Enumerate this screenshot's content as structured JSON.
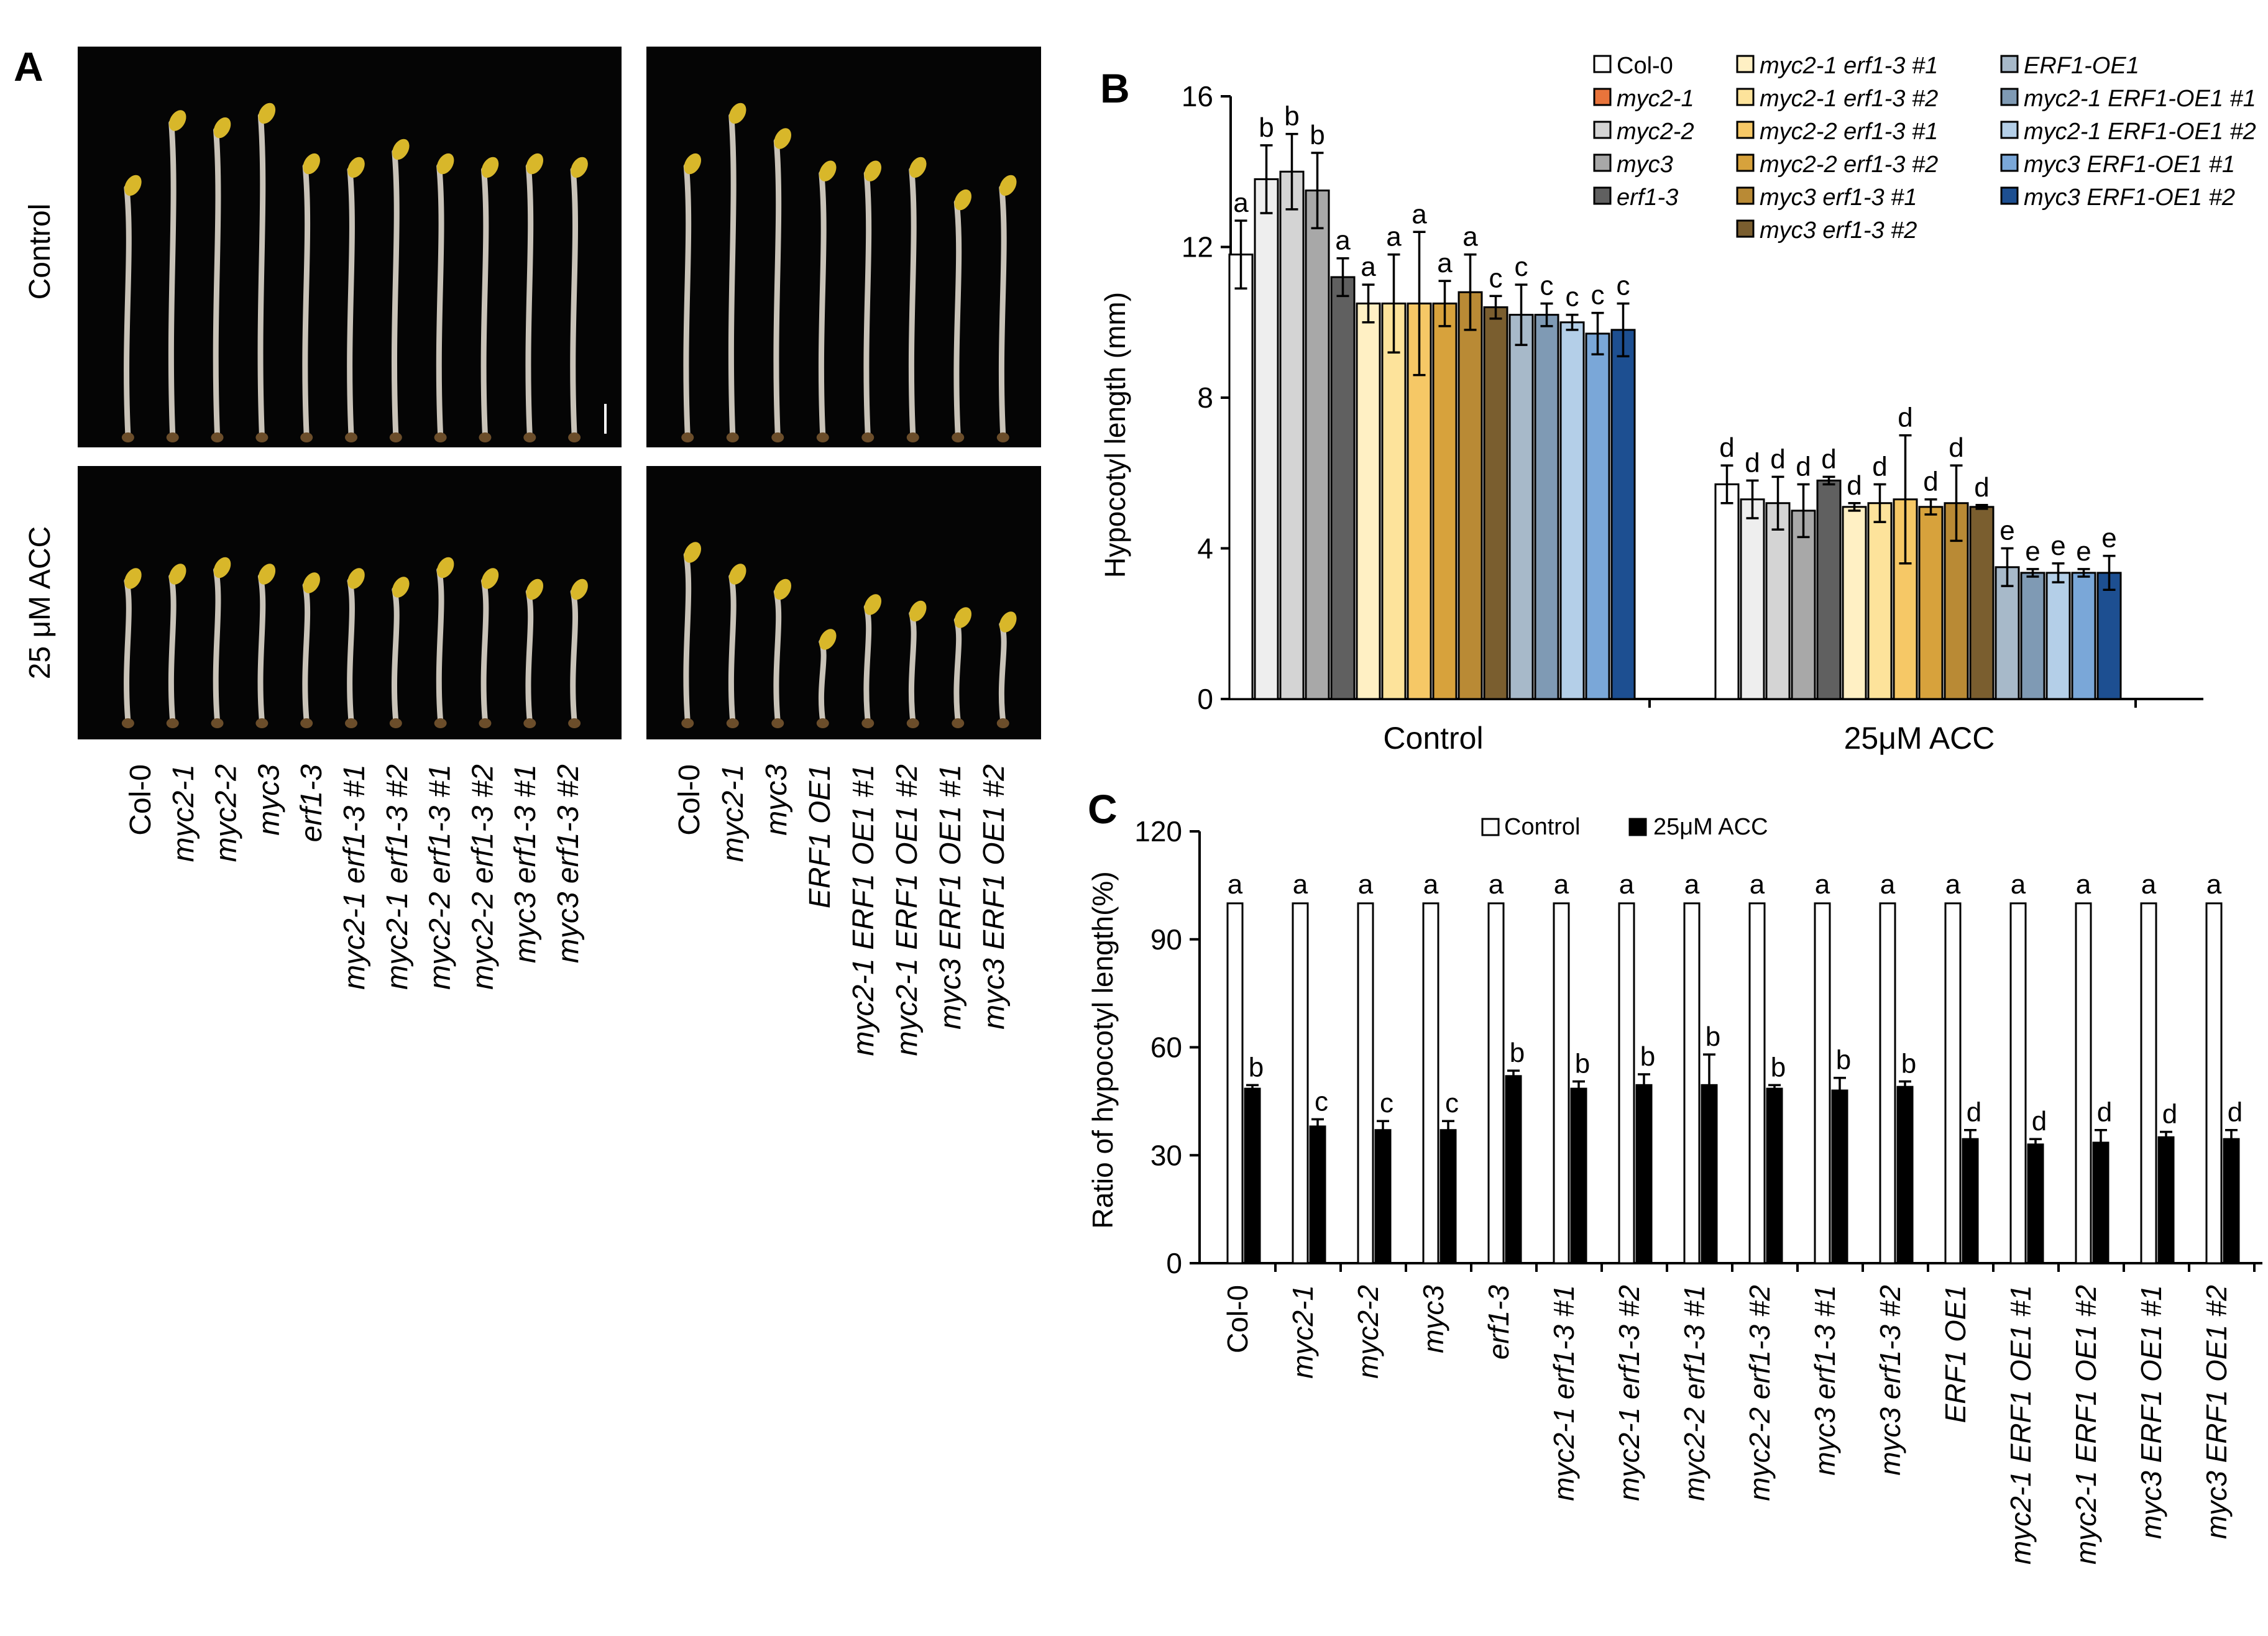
{
  "figure": {
    "panel_letters": [
      "A",
      "B",
      "C"
    ]
  },
  "panel_a": {
    "row_labels": [
      "Control",
      "25 μM ACC"
    ],
    "left_genotypes": [
      "Col-0",
      "myc2-1",
      "myc2-2",
      "myc3",
      "erf1-3",
      "myc2-1 erf1-3 #1",
      "myc2-1 erf1-3 #2",
      "myc2-2 erf1-3 #1",
      "myc2-2 erf1-3 #2",
      "myc3 erf1-3 #1",
      "myc3 erf1-3 #2"
    ],
    "right_genotypes": [
      "Col-0",
      "myc2-1",
      "myc3",
      "ERF1 OE1",
      "myc2-1 ERF1 OE1 #1",
      "myc2-1 ERF1 OE1 #2",
      "myc3 ERF1 OE1 #1",
      "myc3 ERF1 OE1 #2"
    ],
    "colors": {
      "background": "#050505",
      "hypocotyl": "#c9c3b8",
      "cotyledon": "#d8b72a"
    },
    "seedlings": {
      "top_left": [
        0.72,
        0.9,
        0.88,
        0.92,
        0.78,
        0.77,
        0.82,
        0.78,
        0.77,
        0.78,
        0.77
      ],
      "top_right": [
        0.78,
        0.92,
        0.85,
        0.76,
        0.76,
        0.77,
        0.68,
        0.72
      ],
      "bottom_left": [
        0.7,
        0.72,
        0.75,
        0.72,
        0.68,
        0.7,
        0.66,
        0.75,
        0.7,
        0.65,
        0.65
      ],
      "bottom_right": [
        0.82,
        0.72,
        0.65,
        0.42,
        0.58,
        0.55,
        0.52,
        0.5
      ]
    }
  },
  "chart_data": [
    {
      "panel": "B",
      "type": "bar",
      "title": "",
      "xlabel": "",
      "ylabel": "Hypocotyl length (mm)",
      "ylim": [
        0,
        16
      ],
      "yticks": [
        0,
        4,
        8,
        12,
        16
      ],
      "groups": [
        "Control",
        "25μM ACC"
      ],
      "legend": {
        "position": "top-right"
      },
      "series": [
        {
          "name": "Col-0",
          "color": "#ffffff",
          "values": [
            11.8,
            5.7
          ],
          "errors": [
            0.9,
            0.5
          ],
          "letters": [
            "a",
            "d"
          ]
        },
        {
          "name": "myc2-1",
          "color": "#eeeeee",
          "legend_color": "#e8743b",
          "values": [
            13.8,
            5.3
          ],
          "errors": [
            0.9,
            0.5
          ],
          "letters": [
            "b",
            "d"
          ]
        },
        {
          "name": "myc2-2",
          "color": "#d4d4d4",
          "values": [
            14.0,
            5.2
          ],
          "errors": [
            1.0,
            0.7
          ],
          "letters": [
            "b",
            "d"
          ]
        },
        {
          "name": "myc3",
          "color": "#a8a8a8",
          "values": [
            13.5,
            5.0
          ],
          "errors": [
            1.0,
            0.7
          ],
          "letters": [
            "b",
            "d"
          ]
        },
        {
          "name": "erf1-3",
          "color": "#606060",
          "values": [
            11.2,
            5.8
          ],
          "errors": [
            0.5,
            0.1
          ],
          "letters": [
            "a",
            "d"
          ]
        },
        {
          "name": "myc2-1 erf1-3 #1",
          "color": "#fff0c4",
          "values": [
            10.5,
            5.1
          ],
          "errors": [
            0.5,
            0.1
          ],
          "letters": [
            "a",
            "d"
          ]
        },
        {
          "name": "myc2-1 erf1-3 #2",
          "color": "#fde39b",
          "values": [
            10.5,
            5.2
          ],
          "errors": [
            1.3,
            0.5
          ],
          "letters": [
            "a",
            "d"
          ]
        },
        {
          "name": "myc2-2 erf1-3 #1",
          "color": "#f6c866",
          "values": [
            10.5,
            5.3
          ],
          "errors": [
            1.9,
            1.7
          ],
          "letters": [
            "a",
            "d"
          ]
        },
        {
          "name": "myc2-2 erf1-3 #2",
          "color": "#d7a23c",
          "values": [
            10.5,
            5.1
          ],
          "errors": [
            0.6,
            0.2
          ],
          "letters": [
            "a",
            "d"
          ]
        },
        {
          "name": "myc3 erf1-3 #1",
          "color": "#b98a35",
          "values": [
            10.8,
            5.2
          ],
          "errors": [
            1.0,
            1.0
          ],
          "letters": [
            "a",
            "d"
          ]
        },
        {
          "name": "myc3 erf1-3 #2",
          "color": "#7a5e2f",
          "values": [
            10.4,
            5.1
          ],
          "errors": [
            0.3,
            0.05
          ],
          "letters": [
            "c",
            "d"
          ]
        },
        {
          "name": "ERF1-OE1",
          "color": "#a7b9c9",
          "values": [
            10.2,
            3.5
          ],
          "errors": [
            0.8,
            0.5
          ],
          "letters": [
            "c",
            "e"
          ]
        },
        {
          "name": "myc2-1 ERF1-OE1 #1",
          "color": "#7f9ab4",
          "values": [
            10.2,
            3.35
          ],
          "errors": [
            0.3,
            0.1
          ],
          "letters": [
            "c",
            "e"
          ]
        },
        {
          "name": "myc2-1 ERF1-OE1 #2",
          "color": "#b4cfe8",
          "values": [
            10.0,
            3.35
          ],
          "errors": [
            0.2,
            0.25
          ],
          "letters": [
            "c",
            "e"
          ]
        },
        {
          "name": "myc3 ERF1-OE1 #1",
          "color": "#7aa7d8",
          "values": [
            9.7,
            3.35
          ],
          "errors": [
            0.55,
            0.1
          ],
          "letters": [
            "c",
            "e"
          ]
        },
        {
          "name": "myc3 ERF1-OE1 #2",
          "color": "#1d4f91",
          "values": [
            9.8,
            3.35
          ],
          "errors": [
            0.7,
            0.45
          ],
          "letters": [
            "c",
            "e"
          ]
        }
      ]
    },
    {
      "panel": "C",
      "type": "bar",
      "title": "",
      "xlabel": "",
      "ylabel": "Ratio of hypocotyl length(%)",
      "ylim": [
        0,
        120
      ],
      "yticks": [
        0,
        30,
        60,
        90,
        120
      ],
      "legend": {
        "position": "top"
      },
      "categories": [
        "Col-0",
        "myc2-1",
        "myc2-2",
        "myc3",
        "erf1-3",
        "myc2-1 erf1-3 #1",
        "myc2-1 erf1-3 #2",
        "myc2-2 erf1-3 #1",
        "myc2-2 erf1-3 #2",
        "myc3 erf1-3 #1",
        "myc3 erf1-3 #2",
        "ERF1 OE1",
        "myc2-1 ERF1 OE1 #1",
        "myc2-1 ERF1 OE1 #2",
        "myc3 ERF1 OE1 #1",
        "myc3 ERF1 OE1 #2"
      ],
      "series": [
        {
          "name": "Control",
          "color": "#ffffff",
          "values": [
            100,
            100,
            100,
            100,
            100,
            100,
            100,
            100,
            100,
            100,
            100,
            100,
            100,
            100,
            100,
            100
          ],
          "letters": [
            "a",
            "a",
            "a",
            "a",
            "a",
            "a",
            "a",
            "a",
            "a",
            "a",
            "a",
            "a",
            "a",
            "a",
            "a",
            "a"
          ]
        },
        {
          "name": "25μM ACC",
          "color": "#000000",
          "values": [
            48.5,
            38,
            37,
            37,
            52,
            48.5,
            49.5,
            49.5,
            48.5,
            48,
            49,
            34.5,
            33,
            33.5,
            35,
            34.5
          ],
          "errors": [
            1,
            2,
            2.5,
            2.5,
            1.5,
            2,
            3,
            8.5,
            1,
            3.5,
            1.5,
            2.5,
            1.5,
            3.5,
            1.5,
            2.5
          ],
          "letters": [
            "b",
            "c",
            "c",
            "c",
            "b",
            "b",
            "b",
            "b",
            "b",
            "b",
            "b",
            "d",
            "d",
            "d",
            "d",
            "d"
          ]
        }
      ]
    }
  ]
}
